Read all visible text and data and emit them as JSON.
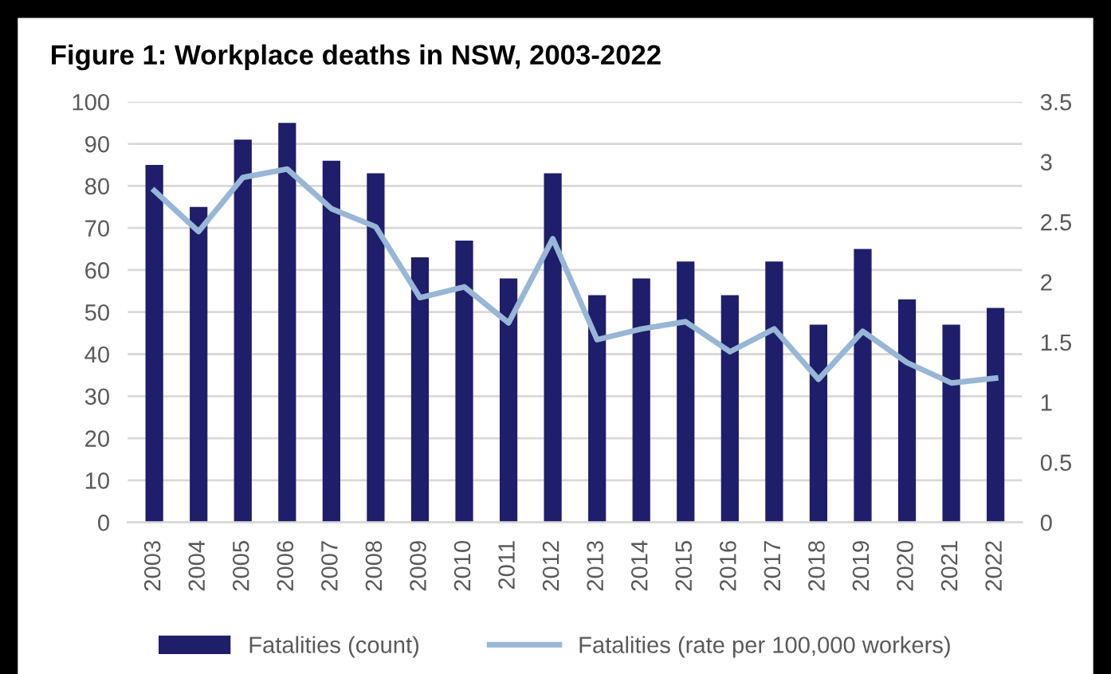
{
  "chart_data": {
    "type": "bar",
    "title": "Figure 1: Workplace deaths in NSW, 2003-2022",
    "categories": [
      "2003",
      "2004",
      "2005",
      "2006",
      "2007",
      "2008",
      "2009",
      "2010",
      "2011",
      "2012",
      "2013",
      "2014",
      "2015",
      "2016",
      "2017",
      "2018",
      "2019",
      "2020",
      "2021",
      "2022"
    ],
    "series": [
      {
        "name": "Fatalities (count)",
        "color": "#1e1e6b",
        "values": [
          85,
          75,
          91,
          95,
          86,
          83,
          63,
          67,
          58,
          83,
          54,
          58,
          62,
          54,
          62,
          47,
          65,
          53,
          47,
          51
        ]
      },
      {
        "name": "Fatalities (rate per 100,000 workers)",
        "type": "line",
        "axis": "y2",
        "color": "#98b6d6",
        "values": [
          2.76,
          2.42,
          2.87,
          2.94,
          2.61,
          2.46,
          1.87,
          1.96,
          1.66,
          2.36,
          1.52,
          1.61,
          1.67,
          1.42,
          1.61,
          1.19,
          1.59,
          1.33,
          1.16,
          1.2
        ]
      }
    ],
    "ylim": [
      0,
      100
    ],
    "yticks": [
      0,
      10,
      20,
      30,
      40,
      50,
      60,
      70,
      80,
      90,
      100
    ],
    "y2lim": [
      0,
      3.5
    ],
    "y2ticks": [
      0,
      {
        "value": 0.5,
        "label": "0.5"
      },
      1,
      {
        "value": 1.5,
        "label": "1.5"
      },
      2,
      {
        "value": 2.5,
        "label": "2.5"
      },
      3,
      {
        "value": 3.5,
        "label": "3.5"
      }
    ],
    "grid": "y",
    "legend": "bottom",
    "marker": "none",
    "line_style": "solid"
  }
}
